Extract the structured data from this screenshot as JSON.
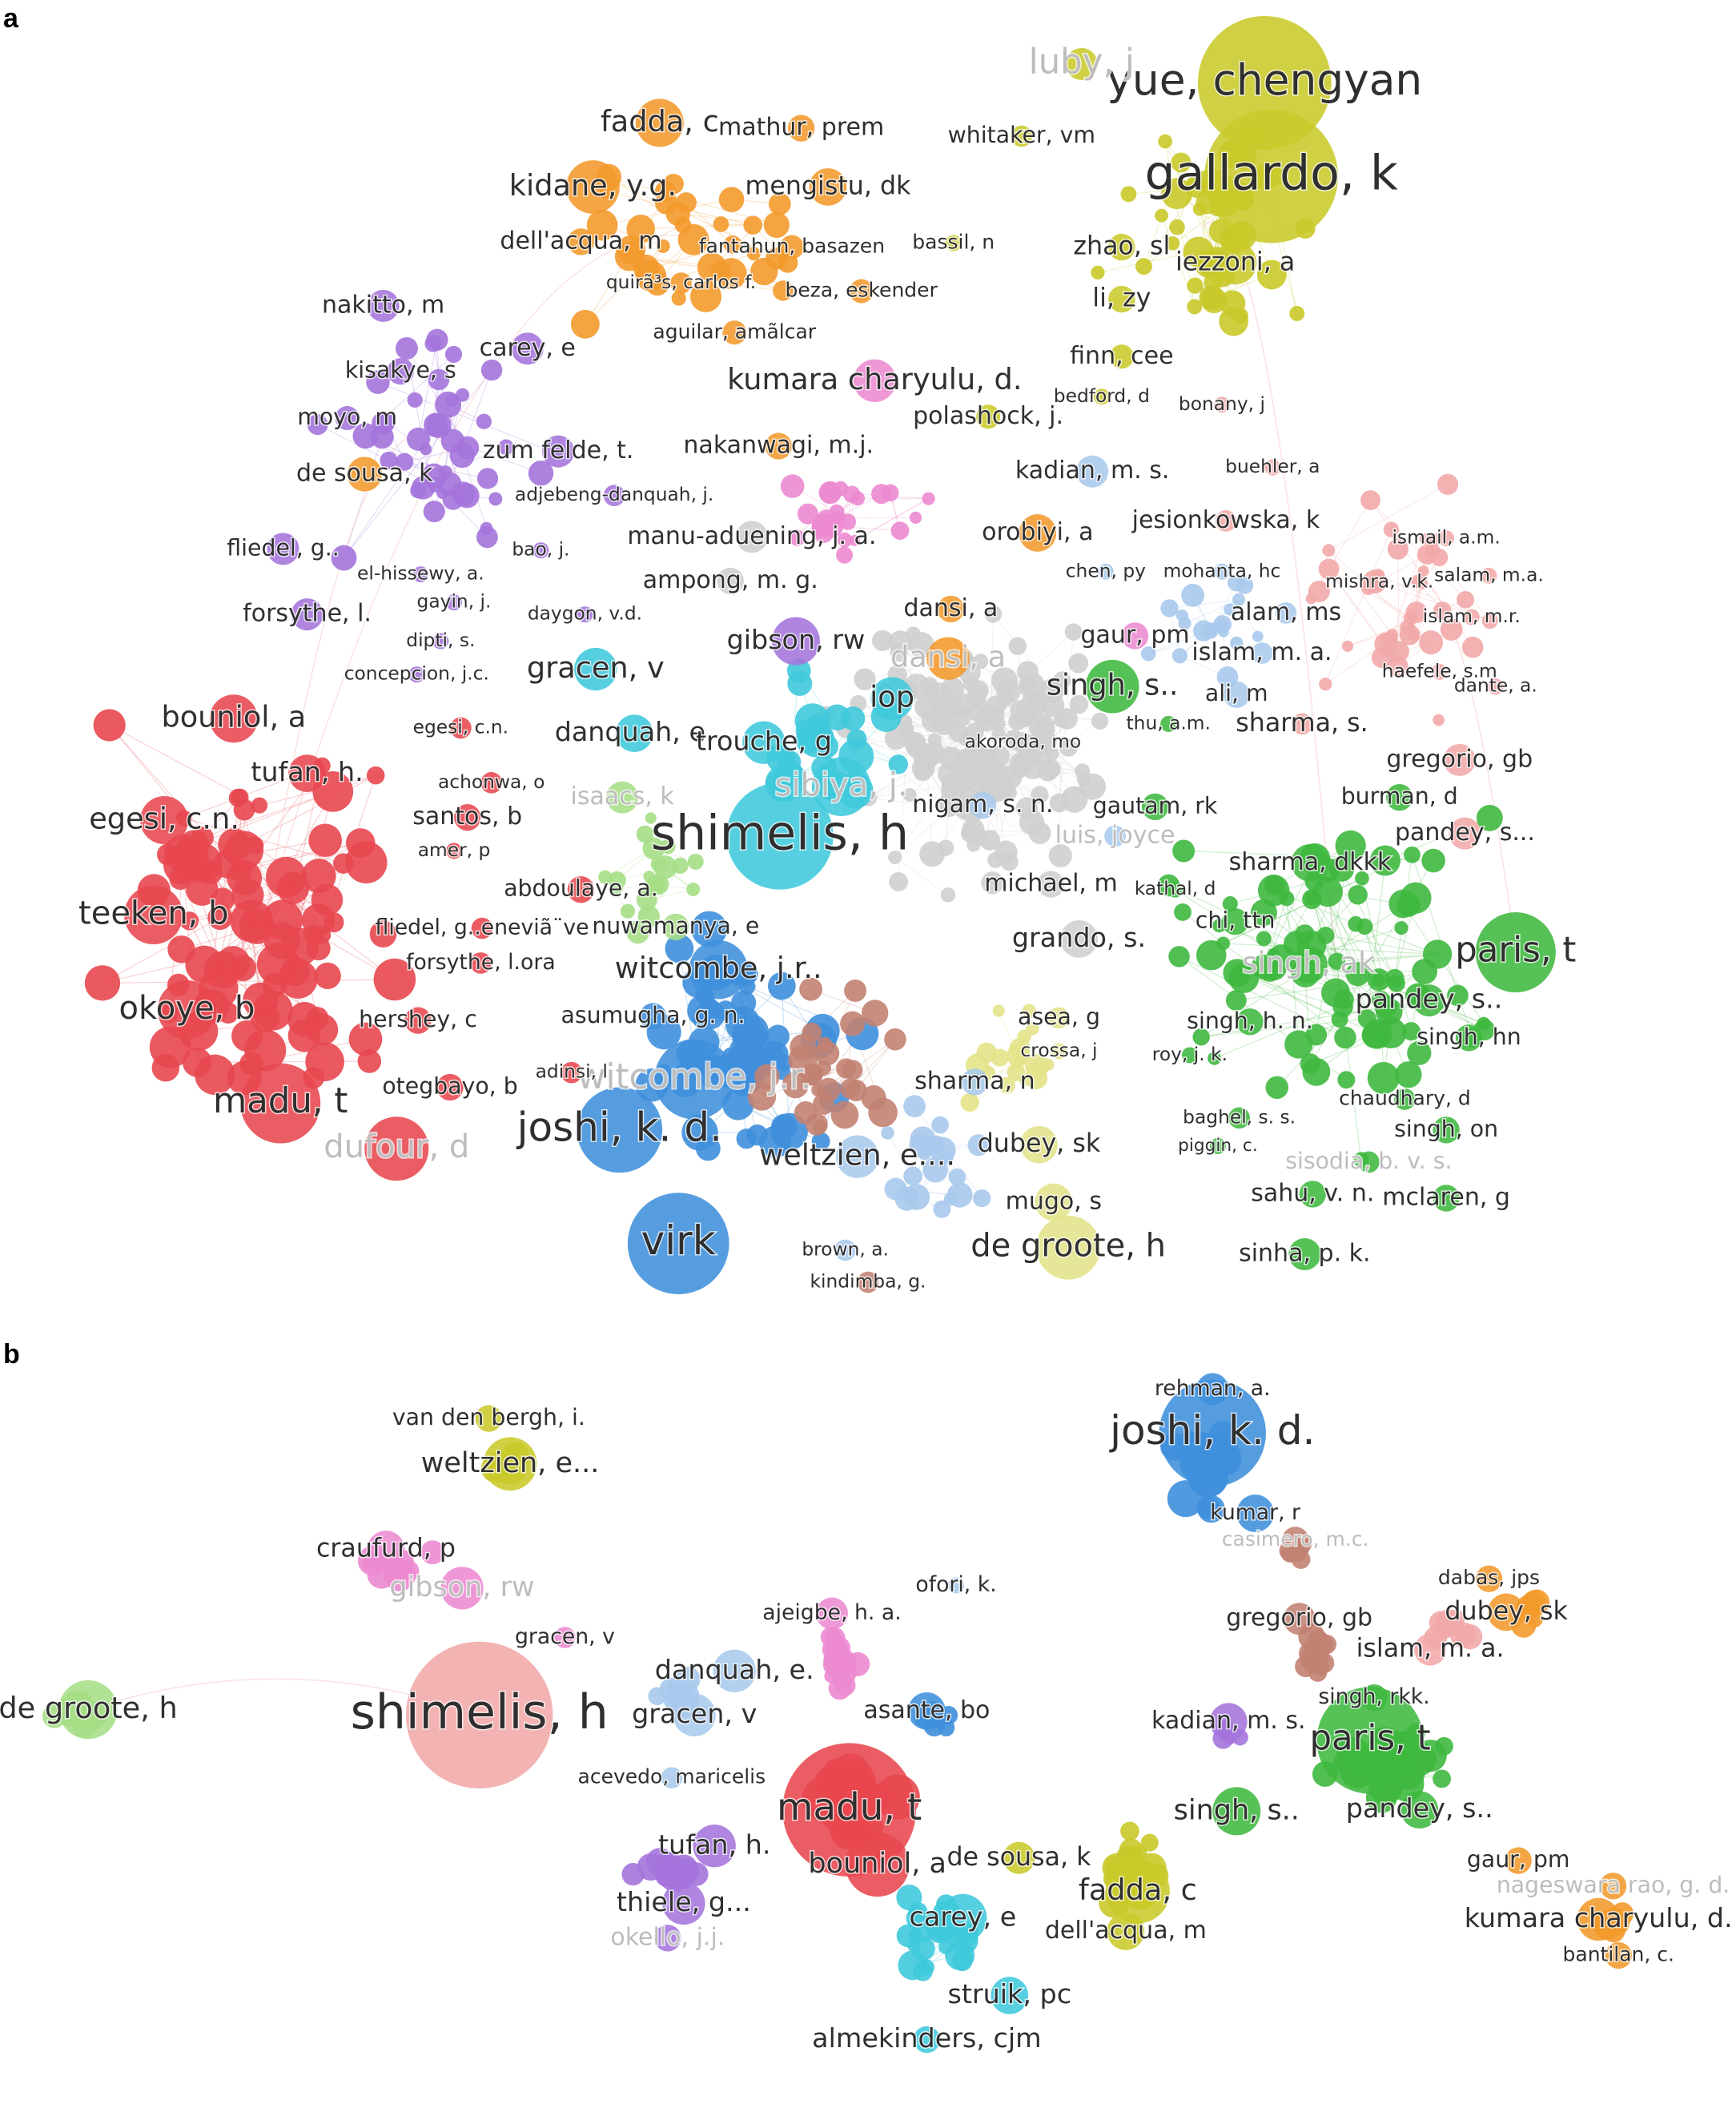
{
  "panels": [
    {
      "tag": "a",
      "nodes": [
        {
          "label": "yue, chengyan"
        },
        {
          "label": "gallardo, k"
        },
        {
          "label": "luby, j"
        },
        {
          "label": "whitaker, vm"
        },
        {
          "label": "fadda, c"
        },
        {
          "label": "mathur, prem"
        },
        {
          "label": "kidane, y.g."
        },
        {
          "label": "mengistu, dk"
        },
        {
          "label": "dell'acqua, m"
        },
        {
          "label": "fantahun, basazen"
        },
        {
          "label": "bassil, n"
        },
        {
          "label": "zhao, sl"
        },
        {
          "label": "iezzoni, a"
        },
        {
          "label": "quirã³s, carlos f."
        },
        {
          "label": "beza, eskender"
        },
        {
          "label": "aguilar, amã­lcar"
        },
        {
          "label": "li, zy"
        },
        {
          "label": "nakitto, m"
        },
        {
          "label": "carey, e"
        },
        {
          "label": "kisakye, s"
        },
        {
          "label": "kumara charyulu, d."
        },
        {
          "label": "finn, cee"
        },
        {
          "label": "moyo, m"
        },
        {
          "label": "polashock, j."
        },
        {
          "label": "bedford, d"
        },
        {
          "label": "bonany, j"
        },
        {
          "label": "zum felde, t."
        },
        {
          "label": "nakanwagi, m.j."
        },
        {
          "label": "de sousa, k"
        },
        {
          "label": "kadian, m. s."
        },
        {
          "label": "buehler, a"
        },
        {
          "label": "adjebeng-danquah, j."
        },
        {
          "label": "jesionkowska, k"
        },
        {
          "label": "manu-aduening, j. a."
        },
        {
          "label": "orobiyi, a"
        },
        {
          "label": "fliedel, g.."
        },
        {
          "label": "bao, j."
        },
        {
          "label": "ismail, a.m."
        },
        {
          "label": "ampong, m. g."
        },
        {
          "label": "chen, py"
        },
        {
          "label": "mohanta, hc"
        },
        {
          "label": "mishra, v.k."
        },
        {
          "label": "salam, m.a."
        },
        {
          "label": "el-hissewy, a."
        },
        {
          "label": "gayin, j."
        },
        {
          "label": "dansi, a"
        },
        {
          "label": "alam, ms"
        },
        {
          "label": "forsythe, l."
        },
        {
          "label": "daygon, v.d."
        },
        {
          "label": "islam, m.r."
        },
        {
          "label": "gibson, rw"
        },
        {
          "label": "dansi, a"
        },
        {
          "label": "gaur, pm"
        },
        {
          "label": "islam, m. a."
        },
        {
          "label": "dipti, s."
        },
        {
          "label": "gracen, v"
        },
        {
          "label": "concepcion, j.c."
        },
        {
          "label": "iop"
        },
        {
          "label": "singh, s.."
        },
        {
          "label": "ali, m"
        },
        {
          "label": "haefele, s.m"
        },
        {
          "label": "dante, a."
        },
        {
          "label": "bouniol, a"
        },
        {
          "label": "egesi, c.n."
        },
        {
          "label": "danquah, e."
        },
        {
          "label": "trouche, g"
        },
        {
          "label": "akoroda, mo"
        },
        {
          "label": "thu, a.m."
        },
        {
          "label": "sharma, s."
        },
        {
          "label": "gregorio, gb"
        },
        {
          "label": "tufan, h."
        },
        {
          "label": "achonwa, o"
        },
        {
          "label": "isaacs, k"
        },
        {
          "label": "sibiya, j."
        },
        {
          "label": "egesi, c.n."
        },
        {
          "label": "santos, b"
        },
        {
          "label": "shimelis, h"
        },
        {
          "label": "nigam, s. n."
        },
        {
          "label": "gautam, rk"
        },
        {
          "label": "burman, d"
        },
        {
          "label": "pandey, s..."
        },
        {
          "label": "amer, p"
        },
        {
          "label": "luis, joyce"
        },
        {
          "label": "sharma, dkkk"
        },
        {
          "label": "abdoulaye, a."
        },
        {
          "label": "michael, m"
        },
        {
          "label": "kathal, d"
        },
        {
          "label": "teeken, b"
        },
        {
          "label": "fliedel, g..eneviã¨ve"
        },
        {
          "label": "nuwamanya, e"
        },
        {
          "label": "chi, ttn"
        },
        {
          "label": "grando, s."
        },
        {
          "label": "paris, t"
        },
        {
          "label": "forsythe, l.ora"
        },
        {
          "label": "witcombe, j.r.."
        },
        {
          "label": "singh, ak"
        },
        {
          "label": "pandey, s.."
        },
        {
          "label": "okoye, b"
        },
        {
          "label": "hershey, c"
        },
        {
          "label": "asumugha, g. n."
        },
        {
          "label": "asea, g"
        },
        {
          "label": "singh, h. n."
        },
        {
          "label": "singh, hn"
        },
        {
          "label": "crossa, j"
        },
        {
          "label": "roy, j. k."
        },
        {
          "label": "witcombe, j.r."
        },
        {
          "label": "otegbayo, b"
        },
        {
          "label": "adinsi, l"
        },
        {
          "label": "sharma, n"
        },
        {
          "label": "chaudhary, d"
        },
        {
          "label": "madu, t"
        },
        {
          "label": "joshi, k. d."
        },
        {
          "label": "baghel, s. s."
        },
        {
          "label": "singh, on"
        },
        {
          "label": "dubey, sk"
        },
        {
          "label": "weltzien, e...."
        },
        {
          "label": "dufour, d"
        },
        {
          "label": "piggin, c."
        },
        {
          "label": "sisodia, b. v. s."
        },
        {
          "label": "sahu, v. n."
        },
        {
          "label": "mclaren, g"
        },
        {
          "label": "mugo, s"
        },
        {
          "label": "virk"
        },
        {
          "label": "de groote, h"
        },
        {
          "label": "sinha, p. k."
        },
        {
          "label": "brown, a."
        },
        {
          "label": "kindimba, g."
        }
      ]
    },
    {
      "tag": "b",
      "nodes": [
        {
          "label": "van den bergh, i."
        },
        {
          "label": "weltzien, e..."
        },
        {
          "label": "rehman, a."
        },
        {
          "label": "joshi, k. d."
        },
        {
          "label": "kumar, r"
        },
        {
          "label": "casimero, m.c."
        },
        {
          "label": "craufurd, p"
        },
        {
          "label": "gibson, rw"
        },
        {
          "label": "ofori, k."
        },
        {
          "label": "dabas, jps"
        },
        {
          "label": "ajeigbe, h. a."
        },
        {
          "label": "gregorio, gb"
        },
        {
          "label": "dubey, sk"
        },
        {
          "label": "gracen, v"
        },
        {
          "label": "islam, m. a."
        },
        {
          "label": "danquah, e."
        },
        {
          "label": "shimelis, h"
        },
        {
          "label": "de groote, h"
        },
        {
          "label": "gracen, v"
        },
        {
          "label": "asante, bo"
        },
        {
          "label": "singh, rkk."
        },
        {
          "label": "kadian, m. s."
        },
        {
          "label": "paris, t"
        },
        {
          "label": "acevedo, maricelis"
        },
        {
          "label": "madu, t"
        },
        {
          "label": "singh, s.."
        },
        {
          "label": "pandey, s.."
        },
        {
          "label": "tufan, h."
        },
        {
          "label": "de sousa, k"
        },
        {
          "label": "bouniol, a"
        },
        {
          "label": "gaur, pm"
        },
        {
          "label": "nageswara rao, g. d."
        },
        {
          "label": "fadda, c"
        },
        {
          "label": "thiele, g..."
        },
        {
          "label": "carey, e"
        },
        {
          "label": "dell'acqua, m"
        },
        {
          "label": "kumara charyulu, d."
        },
        {
          "label": "okello, j.j."
        },
        {
          "label": "bantilan, c."
        },
        {
          "label": "struik, pc"
        },
        {
          "label": "almekinders, cjm"
        }
      ]
    }
  ]
}
